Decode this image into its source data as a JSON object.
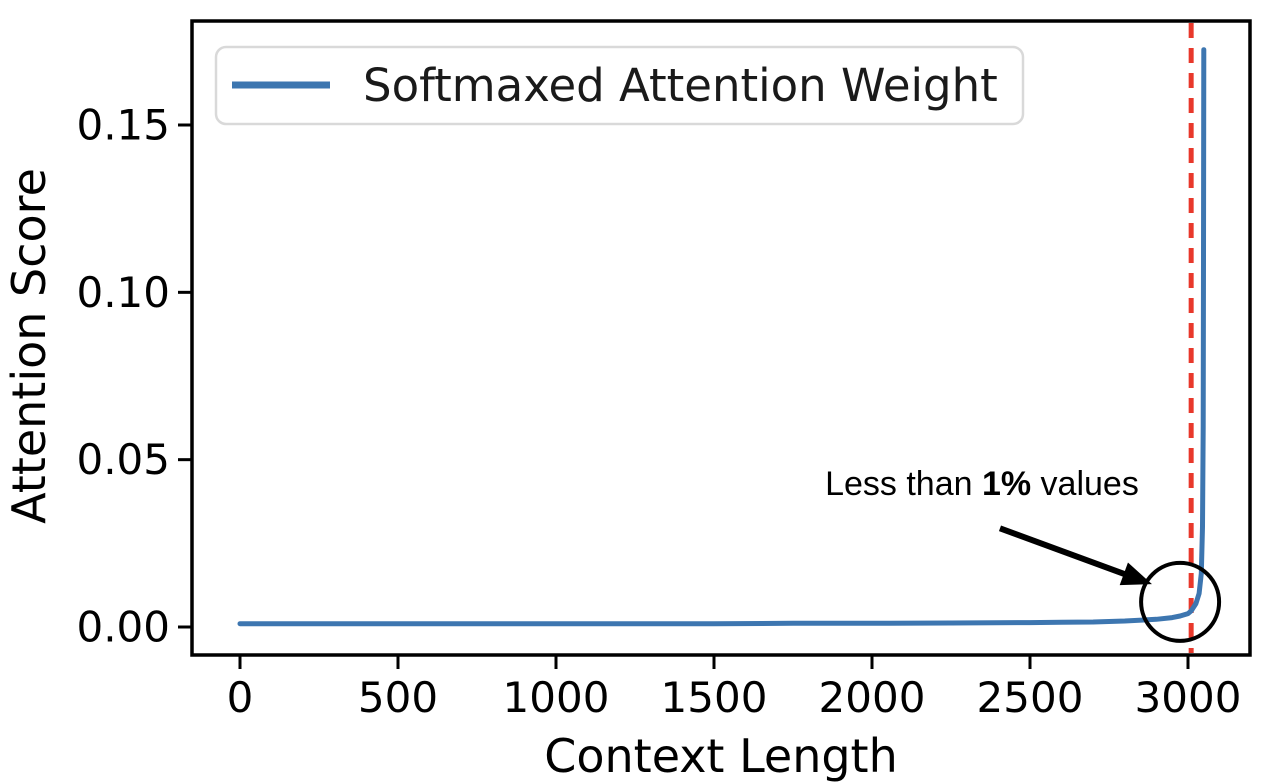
{
  "figure": {
    "background": "#ffffff",
    "border_color": "#000000"
  },
  "chart_data": {
    "type": "line",
    "title": "",
    "xlabel": "Context Length",
    "ylabel": "Attention Score",
    "x_ticks": [
      {
        "value": 0,
        "label": "0"
      },
      {
        "value": 500,
        "label": "500"
      },
      {
        "value": 1000,
        "label": "1000"
      },
      {
        "value": 1500,
        "label": "1500"
      },
      {
        "value": 2000,
        "label": "2000"
      },
      {
        "value": 2500,
        "label": "2500"
      },
      {
        "value": 3000,
        "label": "3000"
      }
    ],
    "y_ticks": [
      {
        "value": 0.0,
        "label": "0.00"
      },
      {
        "value": 0.05,
        "label": "0.05"
      },
      {
        "value": 0.1,
        "label": "0.10"
      },
      {
        "value": 0.15,
        "label": "0.15"
      }
    ],
    "xlim": [
      -152,
      3196
    ],
    "ylim": [
      -0.0084,
      0.1811
    ],
    "grid": false,
    "legend_position": "upper left",
    "series": [
      {
        "name": "Softmaxed Attention Weight",
        "color": "#3D76B0",
        "points": [
          [
            0,
            0.001
          ],
          [
            250,
            0.001
          ],
          [
            500,
            0.001
          ],
          [
            750,
            0.001
          ],
          [
            1000,
            0.001
          ],
          [
            1250,
            0.001
          ],
          [
            1500,
            0.001
          ],
          [
            1750,
            0.0011
          ],
          [
            2000,
            0.0011
          ],
          [
            2250,
            0.0012
          ],
          [
            2500,
            0.0013
          ],
          [
            2600,
            0.0014
          ],
          [
            2700,
            0.0015
          ],
          [
            2800,
            0.0018
          ],
          [
            2900,
            0.0023
          ],
          [
            2950,
            0.0028
          ],
          [
            2975,
            0.0033
          ],
          [
            3000,
            0.004
          ],
          [
            3010,
            0.0048
          ],
          [
            3025,
            0.007
          ],
          [
            3035,
            0.01
          ],
          [
            3042,
            0.016
          ],
          [
            3046,
            0.03
          ],
          [
            3048,
            0.06
          ],
          [
            3049,
            0.11
          ],
          [
            3050,
            0.1725
          ]
        ]
      }
    ],
    "vline": {
      "x": 3010,
      "color": "#E8382B",
      "style": "dashed"
    },
    "annotation": {
      "text_prefix": "Less than ",
      "text_bold": "1%",
      "text_suffix": " values",
      "text_at": [
        2348,
        0.043
      ],
      "arrow_from": [
        2405,
        0.0295
      ],
      "arrow_to": [
        2886,
        0.0128
      ],
      "circle_at": [
        2975,
        0.0075
      ],
      "circle_radius_px": 39,
      "color": "#000000"
    }
  },
  "legend": {
    "label": "Softmaxed Attention Weight"
  }
}
